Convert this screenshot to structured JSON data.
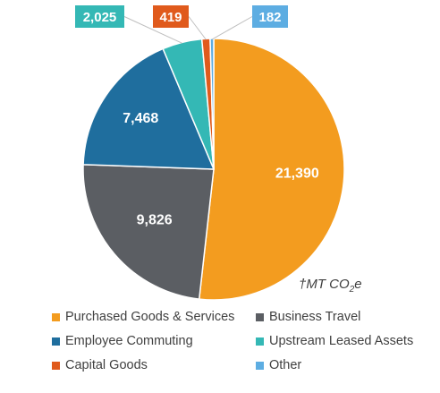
{
  "chart_data": {
    "type": "pie",
    "unit_note": {
      "prefix": "†MT CO",
      "subscript": "2",
      "suffix": "e"
    },
    "slices": [
      {
        "name": "Purchased Goods & Services",
        "value": 21390,
        "label": "21,390",
        "color": "#F39C1F"
      },
      {
        "name": "Business Travel",
        "value": 9826,
        "label": "9,826",
        "color": "#5B5E63"
      },
      {
        "name": "Employee Commuting",
        "value": 7468,
        "label": "7,468",
        "color": "#1F6E9E"
      },
      {
        "name": "Upstream Leased Assets",
        "value": 2025,
        "label": "2,025",
        "color": "#34B8B5"
      },
      {
        "name": "Capital Goods",
        "value": 419,
        "label": "419",
        "color": "#E05A1C"
      },
      {
        "name": "Other",
        "value": 182,
        "label": "182",
        "color": "#5DADE2"
      }
    ],
    "legend_placement": "bottom"
  }
}
